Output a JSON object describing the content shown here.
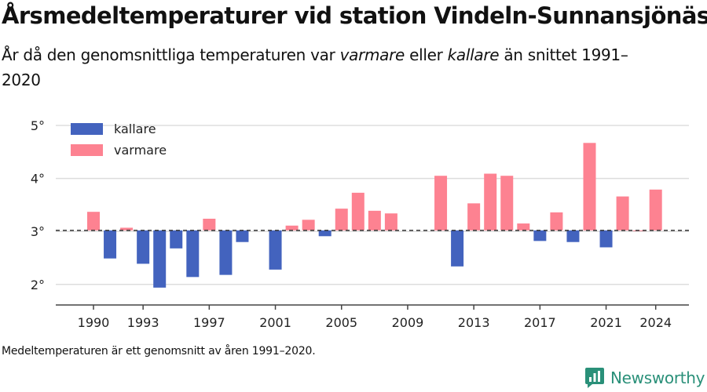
{
  "header": {
    "title": "Årsmedeltemperaturer vid station Vindeln-Sunnansjönäs",
    "subtitle_pre": "År då den genomsnittliga temperaturen var ",
    "subtitle_em1": "varmare",
    "subtitle_mid": " eller ",
    "subtitle_em2": "kallare",
    "subtitle_post": " än snittet 1991–2020"
  },
  "footer": {
    "note": "Medeltemperaturen är ett genomsnitt av åren 1991–2020.",
    "brand": "Newsworthy",
    "brand_icon": "newsworthy-logo-icon"
  },
  "colors": {
    "kallare": "#4363be",
    "varmare": "#fd8291",
    "baseline": "#333333",
    "grid": "#dddddd",
    "axis": "#444444",
    "brand": "#2a9079"
  },
  "chart_data": {
    "type": "bar",
    "baseline": 3.02,
    "ylim": [
      1.6,
      5.2
    ],
    "xlim": [
      1988,
      2026
    ],
    "grid": true,
    "legend_position": "top-left",
    "y_ticks": [
      {
        "value": 2,
        "label": "2°"
      },
      {
        "value": 3,
        "label": "3°"
      },
      {
        "value": 4,
        "label": "4°"
      },
      {
        "value": 5,
        "label": "5°"
      }
    ],
    "x_ticks": [
      {
        "value": 1990,
        "label": "1990"
      },
      {
        "value": 1993,
        "label": "1993"
      },
      {
        "value": 1997,
        "label": "1997"
      },
      {
        "value": 2001,
        "label": "2001"
      },
      {
        "value": 2005,
        "label": "2005"
      },
      {
        "value": 2009,
        "label": "2009"
      },
      {
        "value": 2013,
        "label": "2013"
      },
      {
        "value": 2017,
        "label": "2017"
      },
      {
        "value": 2021,
        "label": "2021"
      },
      {
        "value": 2024,
        "label": "2024"
      }
    ],
    "legend": [
      {
        "key": "kallare",
        "label": "kallare"
      },
      {
        "key": "varmare",
        "label": "varmare"
      }
    ],
    "x": [
      1990,
      1991,
      1992,
      1993,
      1994,
      1995,
      1996,
      1997,
      1998,
      1999,
      2000,
      2001,
      2002,
      2003,
      2004,
      2005,
      2006,
      2007,
      2008,
      2009,
      2010,
      2011,
      2012,
      2013,
      2014,
      2015,
      2016,
      2017,
      2018,
      2019,
      2020,
      2021,
      2022,
      2023,
      2024
    ],
    "values": [
      3.37,
      2.49,
      3.07,
      2.39,
      1.94,
      2.68,
      2.14,
      3.24,
      2.18,
      2.8,
      null,
      2.28,
      3.11,
      3.22,
      2.91,
      3.43,
      3.73,
      3.39,
      3.34,
      null,
      null,
      4.05,
      2.34,
      3.53,
      4.09,
      4.05,
      3.15,
      2.82,
      3.36,
      2.8,
      4.67,
      2.7,
      3.66,
      3.02,
      3.79
    ]
  }
}
